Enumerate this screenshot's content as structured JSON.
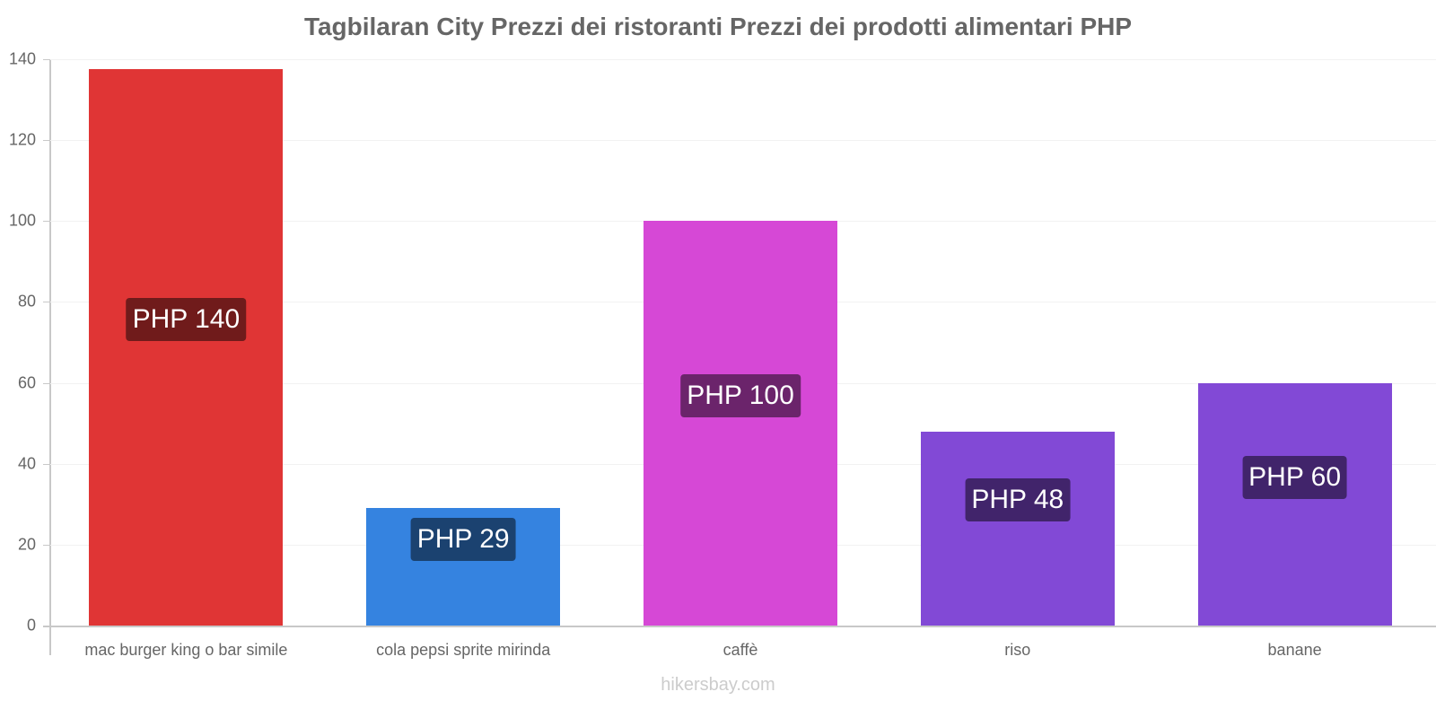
{
  "chart_data": {
    "type": "bar",
    "title": "Tagbilaran City Prezzi dei ristoranti Prezzi dei prodotti alimentari PHP",
    "xlabel": "",
    "ylabel": "",
    "ylim": [
      0,
      140
    ],
    "yticks": [
      0,
      20,
      40,
      60,
      80,
      100,
      120,
      140
    ],
    "grid": true,
    "legend": "none",
    "categories": [
      "mac burger king o bar simile",
      "cola pepsi sprite mirinda",
      "caffè",
      "riso",
      "banane"
    ],
    "values": [
      140,
      29,
      100,
      48,
      60
    ],
    "value_labels": [
      "PHP 140",
      "PHP 29",
      "PHP 100",
      "PHP 48",
      "PHP 60"
    ],
    "colors": [
      "#e03535",
      "#3583e0",
      "#d648d6",
      "#8249d6",
      "#8249d6"
    ],
    "label_bg_colors": [
      "#701b1b",
      "#1b4270",
      "#6b246b",
      "#41246b",
      "#41246b"
    ]
  },
  "watermark": "hikersbay.com"
}
